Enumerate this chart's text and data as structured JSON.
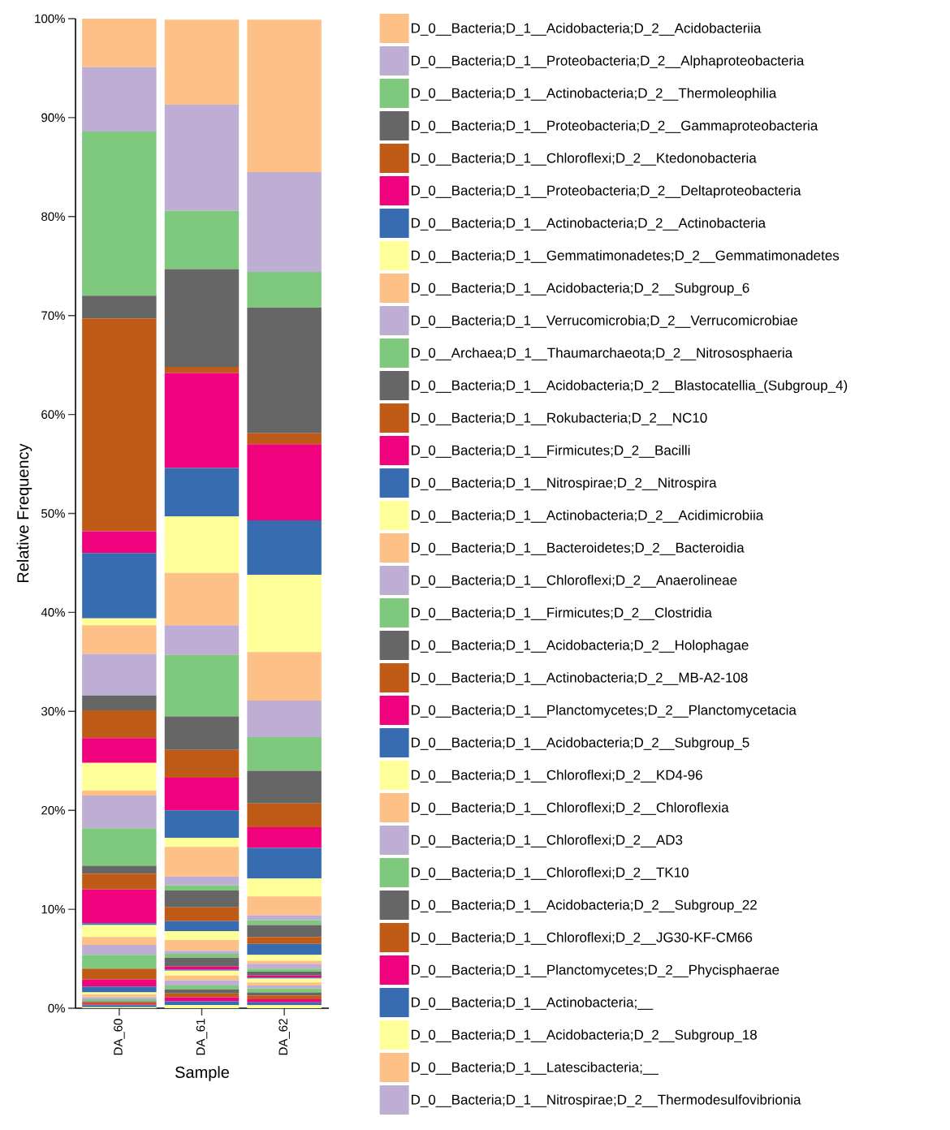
{
  "chart_data": {
    "type": "bar",
    "stacked": true,
    "xlabel": "Sample",
    "ylabel": "Relative Frequency",
    "categories": [
      "DA_60",
      "DA_61",
      "DA_62"
    ],
    "ylim": [
      0,
      100
    ],
    "yticks": [
      {
        "value": 0,
        "label": "0%"
      },
      {
        "value": 10,
        "label": "10%"
      },
      {
        "value": 20,
        "label": "20%"
      },
      {
        "value": 30,
        "label": "30%"
      },
      {
        "value": 40,
        "label": "40%"
      },
      {
        "value": 50,
        "label": "50%"
      },
      {
        "value": 60,
        "label": "60%"
      },
      {
        "value": 70,
        "label": "70%"
      },
      {
        "value": 80,
        "label": "80%"
      },
      {
        "value": 90,
        "label": "90%"
      },
      {
        "value": 100,
        "label": "100%"
      }
    ],
    "legend": "right",
    "series": [
      {
        "color": "#ffff99",
        "values": [
          0.1,
          0.3,
          0.3
        ]
      },
      {
        "color": "#386cb0",
        "values": [
          0.2,
          0.4,
          0.3
        ]
      },
      {
        "color": "#f0027f",
        "values": [
          0.1,
          0.4,
          0.3
        ]
      },
      {
        "color": "#bf5b17",
        "values": [
          0.2,
          0.4,
          0.4
        ]
      },
      {
        "color": "#666666",
        "values": [
          0.1,
          0.4,
          0.3
        ]
      },
      {
        "color": "#7fc97f",
        "values": [
          0.2,
          0.4,
          0.4
        ]
      },
      {
        "name": "D_0__Bacteria;D_1__Nitrospirae;D_2__Thermodesulfovibrionia",
        "color": "#beaed4",
        "values": [
          0.2,
          0.5,
          0.3
        ]
      },
      {
        "name": "D_0__Bacteria;D_1__Latescibacteria;__",
        "color": "#fdc086",
        "values": [
          0.3,
          0.5,
          0.3
        ]
      },
      {
        "name": "D_0__Bacteria;D_1__Acidobacteria;D_2__Subgroup_18",
        "color": "#ffff99",
        "values": [
          0.2,
          0.5,
          0.4
        ]
      },
      {
        "name": "D_0__Bacteria;D_1__Actinobacteria;__",
        "color": "#386cb0",
        "values": [
          0.6,
          0.1,
          0.1
        ]
      },
      {
        "name": "D_0__Bacteria;D_1__Planctomycetes;D_2__Phycisphaerae",
        "color": "#f0027f",
        "values": [
          0.7,
          0.3,
          0.2
        ]
      },
      {
        "name": "D_0__Bacteria;D_1__Chloroflexi;D_2__JG30-KF-CM66",
        "color": "#bf5b17",
        "values": [
          1.1,
          null,
          null
        ]
      },
      {
        "name": "D_0__Bacteria;D_1__Acidobacteria;D_2__Subgroup_22",
        "color": "#666666",
        "values": [
          0,
          0.9,
          0.4
        ]
      },
      {
        "name": "D_0__Bacteria;D_1__Chloroflexi;D_2__TK10",
        "color": "#7fc97f",
        "values": [
          1.4,
          0.4,
          0.3
        ]
      },
      {
        "name": "D_0__Bacteria;D_1__Chloroflexi;D_2__AD3",
        "color": "#beaed4",
        "values": [
          1.0,
          0.3,
          0.5
        ]
      },
      {
        "name": "D_0__Bacteria;D_1__Chloroflexi;D_2__Chloroflexia",
        "color": "#fdc086",
        "values": [
          0.8,
          1.1,
          0.3
        ]
      },
      {
        "name": "D_0__Bacteria;D_1__Chloroflexi;D_2__KD4-96",
        "color": "#ffff99",
        "values": [
          1.2,
          0.9,
          0.6
        ]
      },
      {
        "name": "D_0__Bacteria;D_1__Acidobacteria;D_2__Subgroup_5",
        "color": "#386cb0",
        "values": [
          0.2,
          1.0,
          1.1
        ]
      },
      {
        "name": "D_0__Bacteria;D_1__Planctomycetes;D_2__Planctomycetacia",
        "color": "#f0027f",
        "values": [
          3.4,
          0,
          0
        ]
      },
      {
        "name": "D_0__Bacteria;D_1__Actinobacteria;D_2__MB-A2-108",
        "color": "#bf5b17",
        "values": [
          1.6,
          1.4,
          0.7
        ]
      },
      {
        "name": "D_0__Bacteria;D_1__Acidobacteria;D_2__Holophagae",
        "color": "#666666",
        "values": [
          0.8,
          1.7,
          1.2
        ]
      },
      {
        "name": "D_0__Bacteria;D_1__Firmicutes;D_2__Clostridia",
        "color": "#7fc97f",
        "values": [
          3.8,
          0.5,
          0.5
        ]
      },
      {
        "name": "D_0__Bacteria;D_1__Chloroflexi;D_2__Anaerolineae",
        "color": "#beaed4",
        "values": [
          3.3,
          0.9,
          0.5
        ]
      },
      {
        "name": "D_0__Bacteria;D_1__Bacteroidetes;D_2__Bacteroidia",
        "color": "#fdc086",
        "values": [
          0.5,
          3.0,
          1.9
        ]
      },
      {
        "name": "D_0__Bacteria;D_1__Actinobacteria;D_2__Acidimicrobiia",
        "color": "#ffff99",
        "values": [
          2.8,
          0.9,
          1.8
        ]
      },
      {
        "name": "D_0__Bacteria;D_1__Nitrospirae;D_2__Nitrospira",
        "color": "#386cb0",
        "values": [
          0,
          2.8,
          3.1
        ]
      },
      {
        "name": "D_0__Bacteria;D_1__Firmicutes;D_2__Bacilli",
        "color": "#f0027f",
        "values": [
          2.5,
          3.3,
          2.1
        ]
      },
      {
        "name": "D_0__Bacteria;D_1__Rokubacteria;D_2__NC10",
        "color": "#bf5b17",
        "values": [
          2.8,
          2.8,
          2.4
        ]
      },
      {
        "name": "D_0__Bacteria;D_1__Acidobacteria;D_2__Blastocatellia_(Subgroup_4)",
        "color": "#666666",
        "values": [
          1.5,
          3.4,
          3.3
        ]
      },
      {
        "name": "D_0__Archaea;D_1__Thaumarchaeota;D_2__Nitrososphaeria",
        "color": "#7fc97f",
        "values": [
          0,
          6.2,
          3.4
        ]
      },
      {
        "name": "D_0__Bacteria;D_1__Verrucomicrobia;D_2__Verrucomicrobiae",
        "color": "#beaed4",
        "values": [
          4.2,
          3.0,
          3.7
        ]
      },
      {
        "name": "D_0__Bacteria;D_1__Acidobacteria;D_2__Subgroup_6",
        "color": "#fdc086",
        "values": [
          2.9,
          5.3,
          4.9
        ]
      },
      {
        "name": "D_0__Bacteria;D_1__Gemmatimonadetes;D_2__Gemmatimonadetes",
        "color": "#ffff99",
        "values": [
          0.7,
          5.7,
          7.8
        ]
      },
      {
        "name": "D_0__Bacteria;D_1__Actinobacteria;D_2__Actinobacteria",
        "color": "#386cb0",
        "values": [
          6.6,
          4.9,
          5.5
        ]
      },
      {
        "name": "D_0__Bacteria;D_1__Proteobacteria;D_2__Deltaproteobacteria",
        "color": "#f0027f",
        "values": [
          2.2,
          9.6,
          7.7
        ]
      },
      {
        "name": "D_0__Bacteria;D_1__Chloroflexi;D_2__Ktedonobacteria",
        "color": "#bf5b17",
        "values": [
          21.5,
          0.6,
          1.1
        ]
      },
      {
        "name": "D_0__Bacteria;D_1__Proteobacteria;D_2__Gammaproteobacteria",
        "color": "#666666",
        "values": [
          2.3,
          9.9,
          12.7
        ]
      },
      {
        "name": "D_0__Bacteria;D_1__Actinobacteria;D_2__Thermoleophilia",
        "color": "#7fc97f",
        "values": [
          16.6,
          5.9,
          3.6
        ]
      },
      {
        "name": "D_0__Bacteria;D_1__Proteobacteria;D_2__Alphaproteobacteria",
        "color": "#beaed4",
        "values": [
          6.5,
          10.7,
          10.1
        ]
      },
      {
        "name": "D_0__Bacteria;D_1__Acidobacteria;D_2__Acidobacteriia",
        "color": "#fdc086",
        "values": [
          4.9,
          8.6,
          15.4
        ]
      }
    ]
  }
}
